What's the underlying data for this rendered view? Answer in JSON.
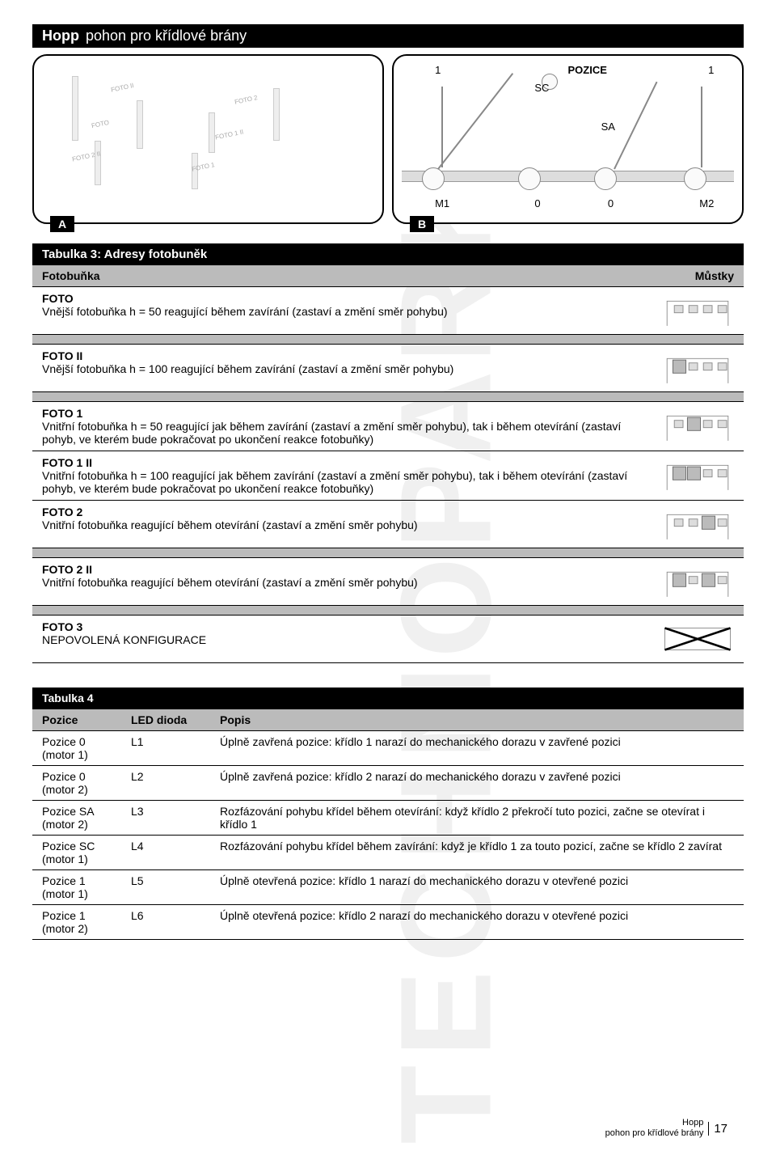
{
  "title": {
    "bold": "Hopp",
    "light": "pohon pro křídlové brány"
  },
  "figA": {
    "label": "A",
    "annot": [
      "FOTO II",
      "FOTO 2",
      "FOTO",
      "FOTO 1 II",
      "FOTO 2 II",
      "FOTO 1"
    ]
  },
  "figB": {
    "label": "B",
    "pozice": "POZICE",
    "sc": "SC",
    "sa": "SA",
    "m1": "M1",
    "m2": "M2",
    "one_a": "1",
    "one_b": "1",
    "zero_a": "0",
    "zero_b": "0"
  },
  "table3": {
    "title": "Tabulka 3: Adresy fotobuněk",
    "col1": "Fotobuňka",
    "col2": "Můstky",
    "rows": [
      {
        "t": "FOTO",
        "d": "Vnější fotobuňka h = 50 reagující během zavírání (zastaví a změní směr pohybu)",
        "jumpers": "0",
        "sep": true
      },
      {
        "t": "FOTO II",
        "d": "Vnější fotobuňka h = 100 reagující během zavírání (zastaví a změní směr pohybu)",
        "jumpers": "1",
        "sep": true
      },
      {
        "t": "FOTO 1",
        "d": "Vnitřní fotobuňka h = 50 reagující jak během zavírání (zastaví a změní směr pohybu), tak i během otevírání (zastaví pohyb, ve kterém bude pokračovat po ukončení reakce fotobuňky)",
        "jumpers": "2",
        "sep": false
      },
      {
        "t": "FOTO 1 II",
        "d": "Vnitřní fotobuňka h = 100 reagující jak během zavírání (zastaví a změní směr pohybu), tak i během otevírání (zastaví pohyb, ve kterém bude pokračovat po ukončení reakce fotobuňky)",
        "jumpers": "3",
        "sep": false
      },
      {
        "t": "FOTO 2",
        "d": "Vnitřní fotobuňka reagující během otevírání (zastaví a změní směr pohybu)",
        "jumpers": "4",
        "sep": true
      },
      {
        "t": "FOTO 2 II",
        "d": "Vnitřní fotobuňka reagující během otevírání (zastaví a změní směr pohybu)",
        "jumpers": "5",
        "sep": true
      },
      {
        "t": "FOTO 3",
        "d": "NEPOVOLENÁ KONFIGURACE",
        "jumpers": "x",
        "sep": false
      }
    ]
  },
  "table4": {
    "title": "Tabulka 4",
    "headers": {
      "pozice": "Pozice",
      "led": "LED dioda",
      "popis": "Popis"
    },
    "rows": [
      {
        "p": "Pozice 0",
        "m": "(motor 1)",
        "l": "L1",
        "d": "Úplně zavřená pozice: křídlo 1 narazí do mechanického dorazu v zavřené pozici"
      },
      {
        "p": "Pozice 0",
        "m": "(motor 2)",
        "l": "L2",
        "d": "Úplně zavřená pozice: křídlo 2 narazí do mechanického dorazu v zavřené pozici"
      },
      {
        "p": "Pozice SA",
        "m": "(motor 2)",
        "l": "L3",
        "d": "Rozfázování pohybu křídel během otevírání: když křídlo 2 překročí tuto pozici, začne se otevírat i křídlo 1"
      },
      {
        "p": "Pozice SC",
        "m": "(motor 1)",
        "l": "L4",
        "d": "Rozfázování pohybu křídel během zavírání: když je křídlo 1 za touto pozicí, začne se křídlo 2 zavírat"
      },
      {
        "p": "Pozice 1",
        "m": "(motor 1)",
        "l": "L5",
        "d": "Úplně otevřená pozice: křídlo 1 narazí do mechanického dorazu v otevřené pozici"
      },
      {
        "p": "Pozice 1",
        "m": "(motor 2)",
        "l": "L6",
        "d": "Úplně otevřená pozice: křídlo 2 narazí do mechanického dorazu v otevřené pozici"
      }
    ]
  },
  "footer": {
    "brand": "Hopp",
    "sub": "pohon pro křídlové brány",
    "page": "17"
  }
}
